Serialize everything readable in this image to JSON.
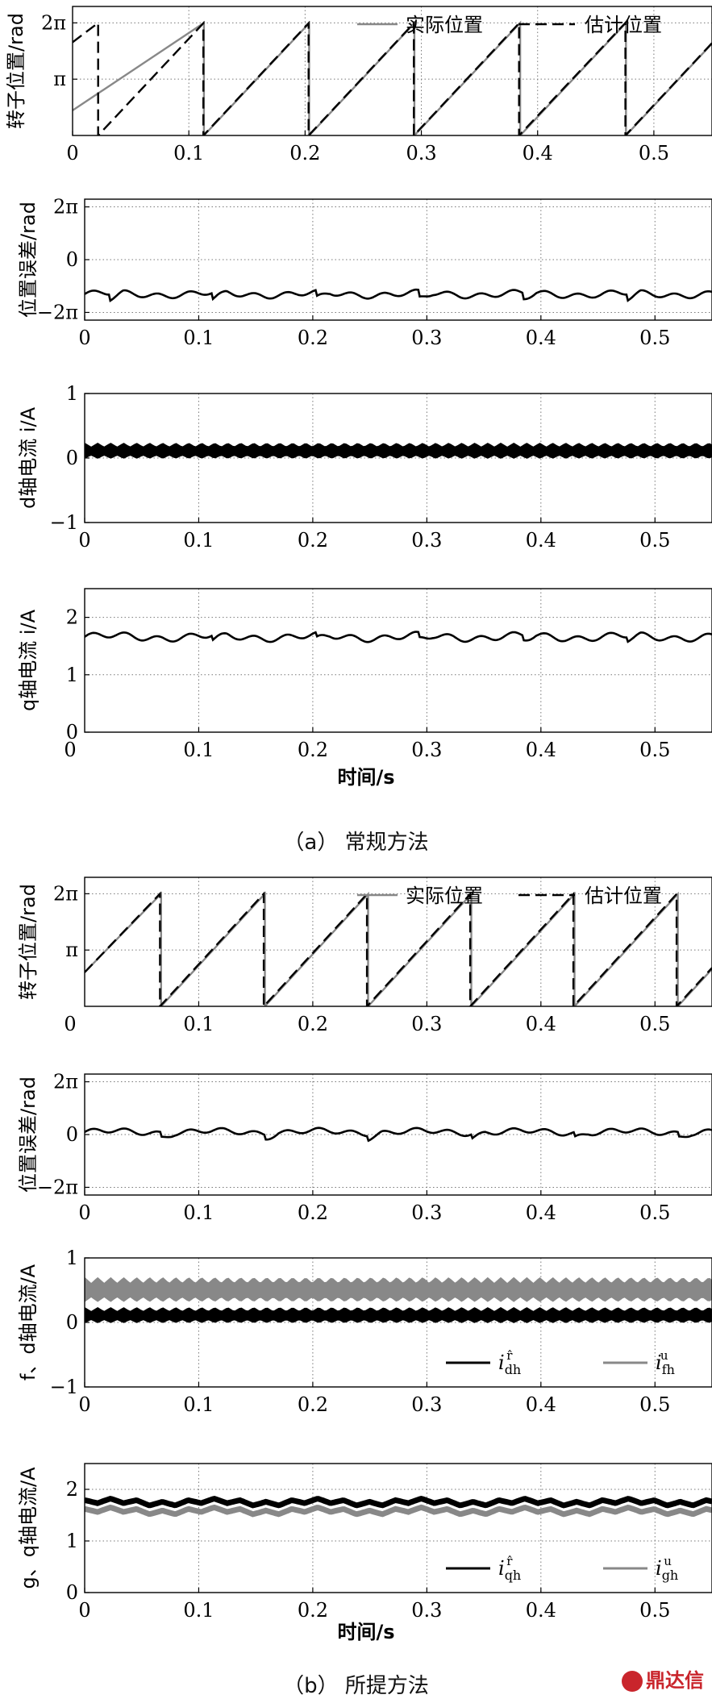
{
  "colors": {
    "actual": "#888888",
    "estimated": "#000000",
    "series_black": "#000000",
    "series_gray": "#888888"
  },
  "panels_a": {
    "caption": "（a） 常规方法",
    "xlabel": "时间/s"
  },
  "panels_b": {
    "caption": "（b） 所提方法",
    "xlabel": "时间/s"
  },
  "watermark": "鼎达信",
  "chart_data": [
    {
      "id": "a1",
      "type": "line",
      "ylabel": "转子位置/rad",
      "xlim": [
        0,
        0.55
      ],
      "ylim": [
        0,
        7.2
      ],
      "xticks": [
        0,
        0.1,
        0.2,
        0.3,
        0.4,
        0.5
      ],
      "xtick_labels": [
        "0",
        "0.1",
        "0.2",
        "0.3",
        "0.4",
        "0.5"
      ],
      "yticks": [
        3.1416,
        6.2832
      ],
      "ytick_labels": [
        "π",
        "2π"
      ],
      "grid": true,
      "legend": "top-right",
      "series": [
        {
          "name": "实际位置",
          "style": "solid",
          "kind": "sawtooth",
          "start": 1.4,
          "resets": [
            0.113,
            0.2035,
            0.294,
            0.385,
            0.476
          ],
          "peak": 6.28
        },
        {
          "name": "估计位置",
          "style": "dashed",
          "kind": "sawtooth",
          "start": 5.2,
          "resets": [
            0.022,
            0.1125,
            0.203,
            0.2935,
            0.384,
            0.4755
          ],
          "peak": 6.28
        }
      ]
    },
    {
      "id": "a2",
      "type": "line",
      "ylabel": "位置误差/rad",
      "xlim": [
        0,
        0.55
      ],
      "ylim": [
        -7.2,
        7.2
      ],
      "xticks": [
        0,
        0.1,
        0.2,
        0.3,
        0.4,
        0.5
      ],
      "xtick_labels": [
        "0",
        "0.1",
        "0.2",
        "0.3",
        "0.4",
        "0.5"
      ],
      "yticks": [
        -6.2832,
        0,
        6.2832
      ],
      "ytick_labels": [
        "−2π",
        "0",
        "2π"
      ],
      "grid": true,
      "series": [
        {
          "name": "",
          "kind": "ripple",
          "mean": -4.1,
          "amp": 0.6,
          "period": 0.0907,
          "dips": [
            0.022,
            0.1125,
            0.203,
            0.2935,
            0.384,
            0.4755
          ],
          "dip_depth": 1.4
        }
      ]
    },
    {
      "id": "a3",
      "type": "line",
      "ylabel": "d轴电流 i_dh^r̂ /A",
      "xlim": [
        0,
        0.55
      ],
      "ylim": [
        -1,
        1
      ],
      "xticks": [
        0,
        0.1,
        0.2,
        0.3,
        0.4,
        0.5
      ],
      "xtick_labels": [
        "0",
        "0.1",
        "0.2",
        "0.3",
        "0.4",
        "0.5"
      ],
      "yticks": [
        -1,
        0,
        1
      ],
      "ytick_labels": [
        "−1",
        "0",
        "1"
      ],
      "grid": true,
      "series": [
        {
          "name": "",
          "kind": "band",
          "low": 0.02,
          "high": 0.2,
          "scallop": 0.06,
          "period": 0.0114
        }
      ]
    },
    {
      "id": "a4",
      "type": "line",
      "ylabel": "q轴电流 i_qh^r̂ /A",
      "xlim": [
        0,
        0.55
      ],
      "ylim": [
        0,
        2.5
      ],
      "xticks": [
        0.1,
        0.2,
        0.3,
        0.4,
        0.5
      ],
      "xtick_labels": [
        "0.1",
        "0.2",
        "0.3",
        "0.4",
        "0.5"
      ],
      "yticks": [
        0,
        1,
        2
      ],
      "ytick_labels": [
        "0",
        "1",
        "2"
      ],
      "grid": true,
      "series": [
        {
          "name": "",
          "kind": "ripple",
          "mean": 1.66,
          "amp": 0.1,
          "period": 0.0907,
          "dips": [
            0.1125,
            0.203,
            0.2935,
            0.384,
            0.4755
          ],
          "dip_depth": 0.15
        }
      ]
    },
    {
      "id": "b1",
      "type": "line",
      "ylabel": "转子位置/rad",
      "xlim": [
        0,
        0.55
      ],
      "ylim": [
        0,
        7.2
      ],
      "xticks": [
        0.1,
        0.2,
        0.3,
        0.4,
        0.5
      ],
      "xtick_labels": [
        "0.1",
        "0.2",
        "0.3",
        "0.4",
        "0.5"
      ],
      "yticks": [
        3.1416,
        6.2832
      ],
      "ytick_labels": [
        "π",
        "2π"
      ],
      "grid": true,
      "legend": "top-right",
      "series": [
        {
          "name": "实际位置",
          "style": "solid",
          "kind": "sawtooth",
          "start": 1.9,
          "resets": [
            0.067,
            0.158,
            0.2485,
            0.339,
            0.4295,
            0.52
          ],
          "peak": 6.28
        },
        {
          "name": "估计位置",
          "style": "dashed",
          "kind": "sawtooth",
          "start": 1.9,
          "resets": [
            0.066,
            0.157,
            0.2475,
            0.338,
            0.4285,
            0.519
          ],
          "peak": 6.28
        }
      ]
    },
    {
      "id": "b2",
      "type": "line",
      "ylabel": "位置误差/rad",
      "xlim": [
        0,
        0.55
      ],
      "ylim": [
        -7.2,
        7.2
      ],
      "xticks": [
        0,
        0.1,
        0.2,
        0.3,
        0.4,
        0.5
      ],
      "xtick_labels": [
        "0",
        "0.1",
        "0.2",
        "0.3",
        "0.4",
        "0.5"
      ],
      "yticks": [
        -6.2832,
        0,
        6.2832
      ],
      "ytick_labels": [
        "−2π",
        "0",
        "2π"
      ],
      "grid": true,
      "series": [
        {
          "name": "",
          "kind": "ripple",
          "mean": 0.3,
          "amp": 0.55,
          "period": 0.0907,
          "dips": [
            0.067,
            0.158,
            0.2485,
            0.339,
            0.4295,
            0.52
          ],
          "dip_depth": 1.0
        }
      ]
    },
    {
      "id": "b3",
      "type": "line",
      "ylabel": "f、d轴电流/A",
      "xlim": [
        0,
        0.55
      ],
      "ylim": [
        -1,
        1
      ],
      "xticks": [
        0,
        0.1,
        0.2,
        0.3,
        0.4,
        0.5
      ],
      "xtick_labels": [
        "0",
        "0.1",
        "0.2",
        "0.3",
        "0.4",
        "0.5"
      ],
      "yticks": [
        -1,
        0,
        1
      ],
      "ytick_labels": [
        "−1",
        "0",
        "1"
      ],
      "grid": true,
      "legend": "bottom-right",
      "series": [
        {
          "name": "i_dh^r̂",
          "color": "black",
          "kind": "band",
          "low": 0.02,
          "high": 0.2,
          "scallop": 0.06,
          "period": 0.0114
        },
        {
          "name": "i_fh^u",
          "color": "gray",
          "kind": "band",
          "low": 0.36,
          "high": 0.65,
          "scallop": 0.09,
          "period": 0.0114
        }
      ]
    },
    {
      "id": "b4",
      "type": "line",
      "ylabel": "g、q轴电流/A",
      "xlim": [
        0,
        0.55
      ],
      "ylim": [
        0,
        2.5
      ],
      "xticks": [
        0,
        0.1,
        0.2,
        0.3,
        0.4,
        0.5
      ],
      "xtick_labels": [
        "0",
        "0.1",
        "0.2",
        "0.3",
        "0.4",
        "0.5"
      ],
      "yticks": [
        0,
        1,
        2
      ],
      "ytick_labels": [
        "0",
        "1",
        "2"
      ],
      "grid": true,
      "legend": "bottom-right",
      "series": [
        {
          "name": "i_qh^r̂",
          "color": "black",
          "kind": "thickripple",
          "mean": 1.75,
          "amp": 0.08,
          "period": 0.0227
        },
        {
          "name": "i_gh^u",
          "color": "gray",
          "kind": "thickripple",
          "mean": 1.58,
          "amp": 0.08,
          "period": 0.0227
        }
      ]
    }
  ]
}
